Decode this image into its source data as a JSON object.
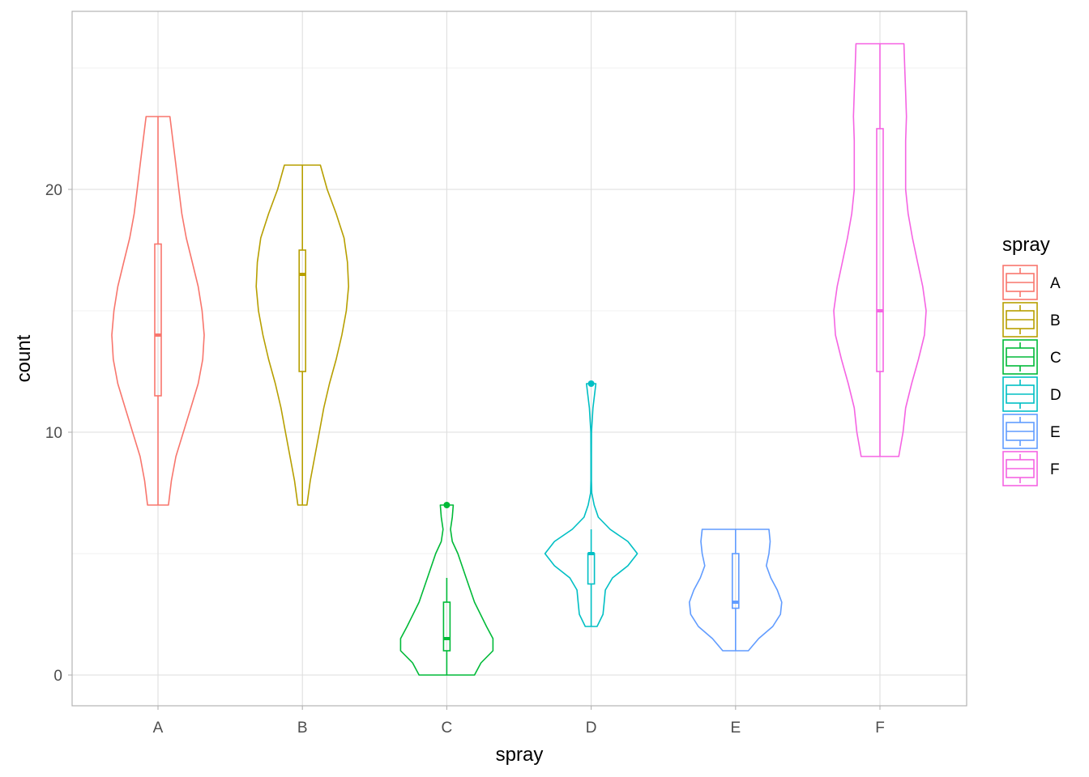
{
  "chart_data": {
    "type": "violin",
    "title": "",
    "xlabel": "spray",
    "ylabel": "count",
    "ylim": [
      -1.25,
      27.25
    ],
    "yticks": [
      0,
      10,
      20
    ],
    "grid": true,
    "legend": {
      "title": "spray",
      "position": "right"
    },
    "categories": [
      "A",
      "B",
      "C",
      "D",
      "E",
      "F"
    ],
    "series": [
      {
        "name": "A",
        "color": "#F8766D",
        "box": {
          "min": 7,
          "q1": 11.5,
          "median": 14,
          "q3": 17.75,
          "max": 23
        },
        "outliers": [],
        "density": [
          [
            7,
            0.035
          ],
          [
            8,
            0.045
          ],
          [
            9,
            0.06
          ],
          [
            10,
            0.085
          ],
          [
            11,
            0.11
          ],
          [
            12,
            0.135
          ],
          [
            13,
            0.15
          ],
          [
            14,
            0.155
          ],
          [
            15,
            0.148
          ],
          [
            16,
            0.135
          ],
          [
            17,
            0.115
          ],
          [
            18,
            0.095
          ],
          [
            19,
            0.08
          ],
          [
            20,
            0.07
          ],
          [
            21,
            0.06
          ],
          [
            22,
            0.05
          ],
          [
            23,
            0.04
          ]
        ]
      },
      {
        "name": "B",
        "color": "#B79F00",
        "box": {
          "min": 7,
          "q1": 12.5,
          "median": 16.5,
          "q3": 17.5,
          "max": 21
        },
        "outliers": [],
        "density": [
          [
            7,
            0.02
          ],
          [
            8,
            0.035
          ],
          [
            9,
            0.055
          ],
          [
            10,
            0.075
          ],
          [
            11,
            0.095
          ],
          [
            12,
            0.12
          ],
          [
            13,
            0.15
          ],
          [
            14,
            0.175
          ],
          [
            15,
            0.195
          ],
          [
            16,
            0.205
          ],
          [
            17,
            0.2
          ],
          [
            18,
            0.185
          ],
          [
            19,
            0.15
          ],
          [
            20,
            0.11
          ],
          [
            21,
            0.08
          ]
        ]
      },
      {
        "name": "C",
        "color": "#00BA38",
        "box": {
          "min": 0,
          "q1": 1,
          "median": 1.5,
          "q3": 3,
          "max": 4
        },
        "outliers": [
          7
        ],
        "density": [
          [
            0,
            0.3
          ],
          [
            0.5,
            0.37
          ],
          [
            1,
            0.5
          ],
          [
            1.5,
            0.5
          ],
          [
            2,
            0.43
          ],
          [
            3,
            0.3
          ],
          [
            4,
            0.21
          ],
          [
            5,
            0.12
          ],
          [
            5.5,
            0.06
          ],
          [
            6,
            0.04
          ],
          [
            6.5,
            0.06
          ],
          [
            7,
            0.07
          ]
        ]
      },
      {
        "name": "D",
        "color": "#00BFC4",
        "box": {
          "min": 2,
          "q1": 3.75,
          "median": 5,
          "q3": 5,
          "max": 6
        },
        "outliers": [
          12
        ],
        "density": [
          [
            2,
            0.1
          ],
          [
            2.5,
            0.2
          ],
          [
            3,
            0.22
          ],
          [
            3.5,
            0.24
          ],
          [
            4,
            0.36
          ],
          [
            4.5,
            0.62
          ],
          [
            5,
            0.78
          ],
          [
            5.5,
            0.62
          ],
          [
            6,
            0.32
          ],
          [
            6.5,
            0.12
          ],
          [
            7,
            0.05
          ],
          [
            7.5,
            0.01
          ],
          [
            8,
            0.004
          ],
          [
            9,
            0.004
          ],
          [
            10,
            0.006
          ],
          [
            11,
            0.03
          ],
          [
            12,
            0.08
          ]
        ]
      },
      {
        "name": "E",
        "color": "#619CFF",
        "box": {
          "min": 1,
          "q1": 2.75,
          "median": 3,
          "q3": 5,
          "max": 6
        },
        "outliers": [],
        "density": [
          [
            1,
            0.2
          ],
          [
            1.5,
            0.36
          ],
          [
            2,
            0.58
          ],
          [
            2.5,
            0.7
          ],
          [
            3,
            0.72
          ],
          [
            3.5,
            0.65
          ],
          [
            4,
            0.55
          ],
          [
            4.5,
            0.48
          ],
          [
            5,
            0.52
          ],
          [
            5.5,
            0.54
          ],
          [
            6,
            0.52
          ]
        ]
      },
      {
        "name": "F",
        "color": "#F564E3",
        "box": {
          "min": 9,
          "q1": 12.5,
          "median": 15,
          "q3": 22.5,
          "max": 26
        },
        "outliers": [],
        "density": [
          [
            9,
            0.022
          ],
          [
            10,
            0.027
          ],
          [
            11,
            0.03
          ],
          [
            12,
            0.037
          ],
          [
            13,
            0.045
          ],
          [
            14,
            0.052
          ],
          [
            15,
            0.054
          ],
          [
            16,
            0.05
          ],
          [
            17,
            0.044
          ],
          [
            18,
            0.038
          ],
          [
            19,
            0.033
          ],
          [
            20,
            0.03
          ],
          [
            21,
            0.03
          ],
          [
            22,
            0.03
          ],
          [
            23,
            0.031
          ],
          [
            24,
            0.03
          ],
          [
            25,
            0.029
          ],
          [
            26,
            0.028
          ]
        ]
      }
    ]
  }
}
